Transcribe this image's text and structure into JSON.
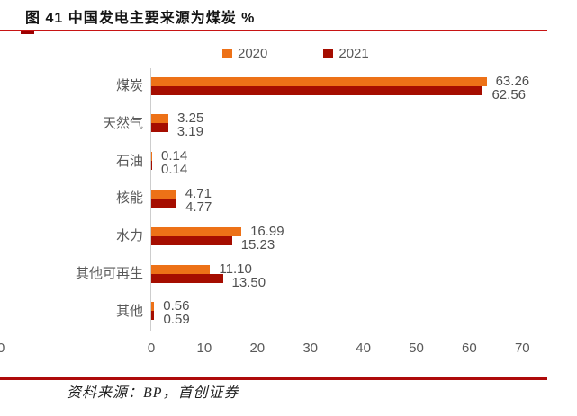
{
  "figure": {
    "title": "图 41 中国发电主要来源为煤炭 %",
    "source_note": "资料来源：BP，首创证券",
    "adjacent_chart_tick": "0"
  },
  "colors": {
    "series_2020": "#ed7117",
    "series_2021": "#a50d00",
    "title_rule": "#c81414",
    "footer_rule": "#ae0a0a",
    "axis_line": "#cdcdcd",
    "label_text": "#595959"
  },
  "chart_data": {
    "type": "bar",
    "orientation": "horizontal",
    "title": "图 41 中国发电主要来源为煤炭 %",
    "xlabel": "",
    "ylabel": "",
    "categories": [
      "煤炭",
      "天然气",
      "石油",
      "核能",
      "水力",
      "其他可再生",
      "其他"
    ],
    "series": [
      {
        "name": "2020",
        "color": "#ed7117",
        "values": [
          63.26,
          3.25,
          0.14,
          4.71,
          16.99,
          11.1,
          0.56
        ]
      },
      {
        "name": "2021",
        "color": "#a50d00",
        "values": [
          62.56,
          3.19,
          0.14,
          4.77,
          15.23,
          13.5,
          0.59
        ]
      }
    ],
    "value_labels": [
      [
        "63.26",
        "3.25",
        "0.14",
        "4.71",
        "16.99",
        "11.10",
        "0.56"
      ],
      [
        "62.56",
        "3.19",
        "0.14",
        "4.77",
        "15.23",
        "13.50",
        "0.59"
      ]
    ],
    "xlim": [
      0,
      70
    ],
    "xticks": [
      0,
      10,
      20,
      30,
      40,
      50,
      60,
      70
    ],
    "legend_position": "top",
    "grid": false
  }
}
